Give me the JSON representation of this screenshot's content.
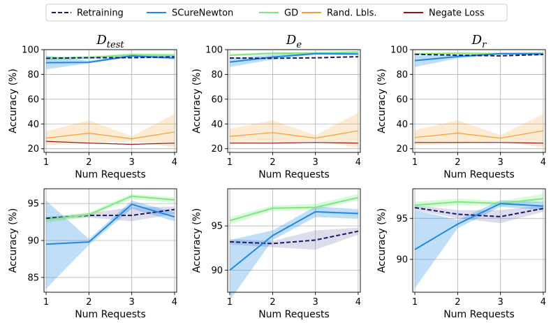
{
  "legend": [
    {
      "label": "Retraining",
      "color": "#191970",
      "dash": true
    },
    {
      "label": "SCureNewton",
      "color": "#1e88e5",
      "dash": false
    },
    {
      "label": "GD",
      "color": "#7ee87e",
      "dash": false
    },
    {
      "label": "Rand. Lbls.",
      "color": "#f0a030",
      "dash": false
    },
    {
      "label": "Negate Loss",
      "color": "#8b1a1a",
      "dash": false
    }
  ],
  "chart_data": [
    {
      "type": "line",
      "row": 0,
      "col": 0,
      "title": {
        "base": "D",
        "sub": "test"
      },
      "xlabel": "Num Requests",
      "ylabel": "Accuracy (%)",
      "x": [
        1,
        2,
        3,
        4
      ],
      "xlim": [
        0.95,
        4.05
      ],
      "ylim": [
        17,
        100
      ],
      "yticks": [
        20,
        40,
        60,
        80,
        100
      ],
      "series": [
        {
          "name": "Rand. Lbls.",
          "values": [
            28.5,
            32.5,
            28.0,
            33.5
          ],
          "band": [
            [
              23,
              34
            ],
            [
              24,
              43
            ],
            [
              26,
              30
            ],
            [
              21,
              48
            ]
          ]
        },
        {
          "name": "Negate Loss",
          "values": [
            26.0,
            24.5,
            23.5,
            24.5
          ]
        },
        {
          "name": "GD",
          "values": [
            93.0,
            93.5,
            96.0,
            95.5
          ],
          "band": [
            [
              91,
              95
            ],
            [
              92,
              95
            ],
            [
              95,
              97
            ],
            [
              94,
              97
            ]
          ]
        },
        {
          "name": "SCureNewton",
          "values": [
            89.5,
            89.8,
            95.0,
            93.2
          ],
          "band": [
            [
              84,
              95
            ],
            [
              89,
              91
            ],
            [
              94,
              96
            ],
            [
              92,
              95
            ]
          ]
        },
        {
          "name": "Retraining",
          "values": [
            93.0,
            93.5,
            93.5,
            94.2
          ]
        }
      ]
    },
    {
      "type": "line",
      "row": 0,
      "col": 1,
      "title": {
        "base": "D",
        "sub": "e"
      },
      "xlabel": "Num Requests",
      "ylabel": "Accuracy (%)",
      "x": [
        1,
        2,
        3,
        4
      ],
      "xlim": [
        0.95,
        4.05
      ],
      "ylim": [
        17,
        100
      ],
      "yticks": [
        20,
        40,
        60,
        80,
        100
      ],
      "series": [
        {
          "name": "Rand. Lbls.",
          "values": [
            30.0,
            33.0,
            28.5,
            34.5
          ],
          "band": [
            [
              24,
              36
            ],
            [
              24,
              43
            ],
            [
              26,
              31
            ],
            [
              21,
              49
            ]
          ]
        },
        {
          "name": "Negate Loss",
          "values": [
            24.5,
            24.5,
            25.0,
            24.5
          ]
        },
        {
          "name": "GD",
          "values": [
            95.5,
            97.0,
            97.2,
            98.0
          ],
          "band": [
            [
              94.5,
              96.5
            ],
            [
              96,
              98
            ],
            [
              96,
              98.5
            ],
            [
              97,
              99
            ]
          ]
        },
        {
          "name": "SCureNewton",
          "values": [
            90.0,
            94.0,
            96.8,
            96.5
          ],
          "band": [
            [
              86,
              93
            ],
            [
              92,
              96
            ],
            [
              96,
              98
            ],
            [
              95.5,
              97.5
            ]
          ]
        },
        {
          "name": "Retraining",
          "values": [
            93.2,
            93.0,
            93.4,
            94.3
          ]
        }
      ]
    },
    {
      "type": "line",
      "row": 0,
      "col": 2,
      "title": {
        "base": "D",
        "sub": "r"
      },
      "xlabel": "Num Requests",
      "ylabel": "Accuracy (%)",
      "x": [
        1,
        2,
        3,
        4
      ],
      "xlim": [
        0.95,
        4.05
      ],
      "ylim": [
        17,
        100
      ],
      "yticks": [
        20,
        40,
        60,
        80,
        100
      ],
      "series": [
        {
          "name": "Rand. Lbls.",
          "values": [
            29.0,
            32.5,
            28.5,
            34.5
          ],
          "band": [
            [
              23,
              35
            ],
            [
              24,
              43
            ],
            [
              26,
              31
            ],
            [
              21,
              48
            ]
          ]
        },
        {
          "name": "Negate Loss",
          "values": [
            25.0,
            25.0,
            25.0,
            24.5
          ]
        },
        {
          "name": "GD",
          "values": [
            96.5,
            97.0,
            96.8,
            97.3
          ],
          "band": [
            [
              95.5,
              97.5
            ],
            [
              96,
              98
            ],
            [
              96,
              97.5
            ],
            [
              96,
              98
            ]
          ]
        },
        {
          "name": "SCureNewton",
          "values": [
            91.2,
            94.4,
            96.7,
            96.5
          ],
          "band": [
            [
              86,
              95
            ],
            [
              93,
              95.5
            ],
            [
              96,
              97.5
            ],
            [
              95.5,
              97.5
            ]
          ]
        },
        {
          "name": "Retraining",
          "values": [
            96.2,
            95.5,
            95.0,
            96.1
          ]
        }
      ]
    },
    {
      "type": "line",
      "row": 1,
      "col": 0,
      "title": null,
      "xlabel": "Num Requests",
      "ylabel": "Accuracy (%)",
      "x": [
        1,
        2,
        3,
        4
      ],
      "xlim": [
        0.95,
        4.05
      ],
      "ylim": [
        83,
        97
      ],
      "yticks": [
        85,
        90,
        95
      ],
      "series": [
        {
          "name": "Retraining",
          "values": [
            93.0,
            93.4,
            93.4,
            94.2
          ],
          "band": [
            [
              92.8,
              93.2
            ],
            [
              93.1,
              93.7
            ],
            [
              92.6,
              94.5
            ],
            [
              93.6,
              94.6
            ]
          ],
          "bandColor": "#8080b8"
        },
        {
          "name": "GD",
          "values": [
            92.8,
            93.5,
            96.0,
            95.5
          ],
          "band": [
            [
              92.4,
              93.2
            ],
            [
              93.2,
              93.8
            ],
            [
              95.6,
              96.3
            ],
            [
              95.1,
              95.8
            ]
          ]
        },
        {
          "name": "SCureNewton",
          "values": [
            89.5,
            89.8,
            94.9,
            93.2
          ],
          "band": [
            [
              83.5,
              95.4
            ],
            [
              89.4,
              90.2
            ],
            [
              94.3,
              95.4
            ],
            [
              92.6,
              93.8
            ]
          ]
        }
      ]
    },
    {
      "type": "line",
      "row": 1,
      "col": 1,
      "title": null,
      "xlabel": "Num Requests",
      "ylabel": "Accuracy (%)",
      "x": [
        1,
        2,
        3,
        4
      ],
      "xlim": [
        0.95,
        4.05
      ],
      "ylim": [
        87.5,
        99.2
      ],
      "yticks": [
        90,
        95
      ],
      "series": [
        {
          "name": "Retraining",
          "values": [
            93.2,
            93.0,
            93.4,
            94.4
          ],
          "band": [
            [
              92.9,
              93.5
            ],
            [
              92.6,
              93.3
            ],
            [
              92.3,
              94.5
            ],
            [
              94.0,
              94.8
            ]
          ],
          "bandColor": "#8080b8"
        },
        {
          "name": "GD",
          "values": [
            95.6,
            97.0,
            97.1,
            98.2
          ],
          "band": [
            [
              95.2,
              96.0
            ],
            [
              96.7,
              97.3
            ],
            [
              96.8,
              97.5
            ],
            [
              97.9,
              98.6
            ]
          ]
        },
        {
          "name": "SCureNewton",
          "values": [
            90.0,
            93.9,
            96.6,
            96.4
          ],
          "band": [
            [
              86.6,
              93.4
            ],
            [
              93.4,
              94.5
            ],
            [
              96.0,
              97.2
            ],
            [
              95.8,
              96.9
            ]
          ]
        }
      ]
    },
    {
      "type": "line",
      "row": 1,
      "col": 2,
      "title": null,
      "xlabel": "Num Requests",
      "ylabel": "Accuracy (%)",
      "x": [
        1,
        2,
        3,
        4
      ],
      "xlim": [
        0.95,
        4.05
      ],
      "ylim": [
        86,
        98.6
      ],
      "yticks": [
        90,
        95
      ],
      "series": [
        {
          "name": "Retraining",
          "values": [
            96.3,
            95.5,
            95.2,
            96.2
          ],
          "band": [
            [
              96.0,
              96.6
            ],
            [
              95.0,
              96.0
            ],
            [
              94.4,
              96.0
            ],
            [
              95.8,
              96.6
            ]
          ],
          "bandColor": "#8080b8"
        },
        {
          "name": "GD",
          "values": [
            96.6,
            97.0,
            96.8,
            97.4
          ],
          "band": [
            [
              96.2,
              97.0
            ],
            [
              96.6,
              97.4
            ],
            [
              96.5,
              97.1
            ],
            [
              96.9,
              98.0
            ]
          ]
        },
        {
          "name": "SCureNewton",
          "values": [
            91.2,
            94.3,
            96.8,
            96.5
          ],
          "band": [
            [
              86.5,
              96.0
            ],
            [
              93.8,
              94.8
            ],
            [
              96.4,
              97.2
            ],
            [
              96.0,
              97.0
            ]
          ]
        }
      ]
    }
  ]
}
